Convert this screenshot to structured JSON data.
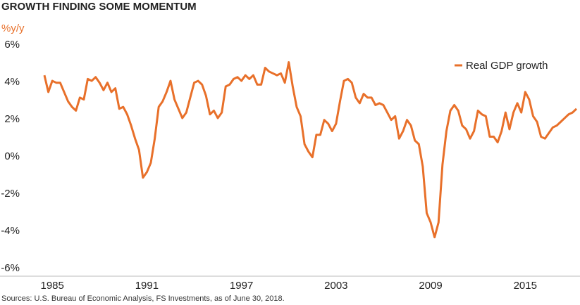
{
  "chart_data": {
    "type": "line",
    "title": "GROWTH FINDING SOME MOMENTUM",
    "y_label": "%y/y",
    "source": "Sources: U.S. Bureau of Economic Analysis, FS Investments, as of June 30, 2018.",
    "x": [
      1984.5,
      1984.75,
      1985,
      1985.25,
      1985.5,
      1985.75,
      1986,
      1986.25,
      1986.5,
      1986.75,
      1987,
      1987.25,
      1987.5,
      1987.75,
      1988,
      1988.25,
      1988.5,
      1988.75,
      1989,
      1989.25,
      1989.5,
      1989.75,
      1990,
      1990.25,
      1990.5,
      1990.75,
      1991,
      1991.25,
      1991.5,
      1991.75,
      1992,
      1992.25,
      1992.5,
      1992.75,
      1993,
      1993.25,
      1993.5,
      1993.75,
      1994,
      1994.25,
      1994.5,
      1994.75,
      1995,
      1995.25,
      1995.5,
      1995.75,
      1996,
      1996.25,
      1996.5,
      1996.75,
      1997,
      1997.25,
      1997.5,
      1997.75,
      1998,
      1998.25,
      1998.5,
      1998.75,
      1999,
      1999.25,
      1999.5,
      1999.75,
      2000,
      2000.25,
      2000.5,
      2000.75,
      2001,
      2001.25,
      2001.5,
      2001.75,
      2002,
      2002.25,
      2002.5,
      2002.75,
      2003,
      2003.25,
      2003.5,
      2003.75,
      2004,
      2004.25,
      2004.5,
      2004.75,
      2005,
      2005.25,
      2005.5,
      2005.75,
      2006,
      2006.25,
      2006.5,
      2006.75,
      2007,
      2007.25,
      2007.5,
      2007.75,
      2008,
      2008.25,
      2008.5,
      2008.75,
      2009,
      2009.25,
      2009.5,
      2009.75,
      2010,
      2010.25,
      2010.5,
      2010.75,
      2011,
      2011.25,
      2011.5,
      2011.75,
      2012,
      2012.25,
      2012.5,
      2012.75,
      2013,
      2013.25,
      2013.5,
      2013.75,
      2014,
      2014.25,
      2014.5,
      2014.75,
      2015,
      2015.25,
      2015.5,
      2015.75,
      2016,
      2016.25,
      2016.5,
      2016.75,
      2017,
      2017.25,
      2017.5,
      2017.75,
      2018,
      2018.25
    ],
    "series": [
      {
        "name": "Real GDP growth",
        "color": "#e8702a",
        "values": [
          4.6,
          3.7,
          4.3,
          4.2,
          4.2,
          3.7,
          3.2,
          2.9,
          2.7,
          3.4,
          3.3,
          4.4,
          4.3,
          4.5,
          4.2,
          3.8,
          4.2,
          3.7,
          3.9,
          2.8,
          2.9,
          2.5,
          1.9,
          1.2,
          0.6,
          -0.9,
          -0.6,
          -0.1,
          1.2,
          2.9,
          3.2,
          3.7,
          4.3,
          3.3,
          2.8,
          2.3,
          2.6,
          3.4,
          4.2,
          4.3,
          4.1,
          3.5,
          2.5,
          2.7,
          2.3,
          2.6,
          4.0,
          4.1,
          4.4,
          4.5,
          4.3,
          4.6,
          4.4,
          4.6,
          4.1,
          4.1,
          5.0,
          4.8,
          4.7,
          4.6,
          4.7,
          4.2,
          5.3,
          4.0,
          2.9,
          2.4,
          0.9,
          0.5,
          0.2,
          1.4,
          1.4,
          2.2,
          2.0,
          1.6,
          2.0,
          3.2,
          4.3,
          4.4,
          4.2,
          3.4,
          3.1,
          3.6,
          3.4,
          3.4,
          3.0,
          3.1,
          3.0,
          2.6,
          2.2,
          2.4,
          1.2,
          1.6,
          2.2,
          1.9,
          1.1,
          0.9,
          -0.3,
          -2.8,
          -3.3,
          -4.1,
          -3.3,
          -0.2,
          1.6,
          2.7,
          3.0,
          2.7,
          1.9,
          1.7,
          1.2,
          1.6,
          2.7,
          2.5,
          2.4,
          1.3,
          1.3,
          1.0,
          1.6,
          2.6,
          1.7,
          2.6,
          3.1,
          2.6,
          3.7,
          3.3,
          2.4,
          2.1,
          1.3,
          1.2,
          1.5,
          1.8,
          1.9,
          2.1,
          2.3,
          2.5,
          2.6,
          2.8
        ]
      }
    ],
    "xlim": [
      1984.5,
      2018.25
    ],
    "xticks": [
      1985,
      1991,
      1997,
      2003,
      2009,
      2015
    ],
    "ylim": [
      -6,
      6
    ],
    "yticks": [
      {
        "value": -6,
        "label": "-6%"
      },
      {
        "value": -4,
        "label": "-4%"
      },
      {
        "value": -2,
        "label": "-2%"
      },
      {
        "value": 0,
        "label": "0%"
      },
      {
        "value": 2,
        "label": "2%"
      },
      {
        "value": 4,
        "label": "4%"
      },
      {
        "value": 6,
        "label": "6%"
      }
    ],
    "legend": "upper right"
  }
}
